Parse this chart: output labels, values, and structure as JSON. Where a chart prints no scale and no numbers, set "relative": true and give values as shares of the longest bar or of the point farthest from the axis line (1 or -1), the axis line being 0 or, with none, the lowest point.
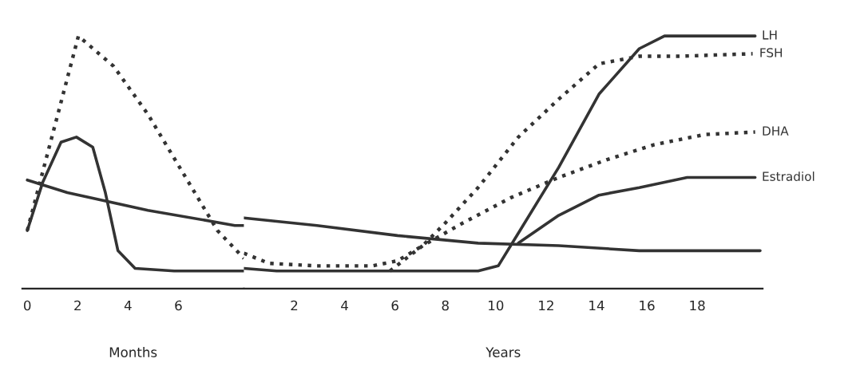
{
  "chart_data": [
    {
      "type": "line",
      "relative": true,
      "grid": false,
      "legend": false,
      "xlim": [
        -0.2,
        8.6
      ],
      "xticks": [
        0,
        2,
        4,
        6
      ],
      "annotations": [
        "Months"
      ],
      "series": [
        {
          "color": "#333333",
          "line_style": "solid",
          "x": [
            0,
            0.61,
            1.34,
            1.95,
            2.6,
            3.1,
            3.6,
            4.28,
            5.83,
            8.6
          ],
          "values": [
            0.23,
            0.42,
            0.58,
            0.6,
            0.56,
            0.38,
            0.15,
            0.08,
            0.07,
            0.07
          ]
        },
        {
          "color": "#333333",
          "line_style": "dotted",
          "x": [
            0,
            2.03,
            3.43,
            4.79,
            6.17,
            7.55,
            8.6
          ],
          "values": [
            0.23,
            1.0,
            0.88,
            0.69,
            0.46,
            0.23,
            0.12
          ]
        },
        {
          "color": "#333333",
          "line_style": "solid",
          "x": [
            0,
            1.59,
            4.79,
            8.24,
            8.6
          ],
          "values": [
            0.43,
            0.38,
            0.31,
            0.25,
            0.25
          ]
        }
      ]
    },
    {
      "type": "line",
      "relative": true,
      "grid": false,
      "legend": false,
      "xlim": [
        0,
        20.6
      ],
      "xticks": [
        2,
        4,
        6,
        8,
        10,
        12,
        14,
        16,
        18
      ],
      "annotations": [
        "Years"
      ],
      "series": [
        {
          "name": "LH",
          "color": "#333333",
          "line_style": "solid",
          "x": [
            0,
            1.3,
            6.1,
            9.3,
            10.1,
            10.9,
            12.5,
            14.1,
            15.7,
            16.7,
            18.3,
            20.3
          ],
          "values": [
            0.08,
            0.07,
            0.07,
            0.07,
            0.09,
            0.22,
            0.48,
            0.77,
            0.95,
            1.0,
            1.0,
            1.0
          ]
        },
        {
          "name": "FSH",
          "color": "#333333",
          "line_style": "dotted",
          "x": [
            0,
            1.0,
            2.9,
            5.1,
            6.1,
            7.1,
            8.0,
            9.3,
            10.9,
            12.5,
            14.1,
            15.7,
            17.3,
            20.2
          ],
          "values": [
            0.14,
            0.1,
            0.09,
            0.09,
            0.11,
            0.17,
            0.26,
            0.4,
            0.6,
            0.75,
            0.89,
            0.92,
            0.92,
            0.93
          ]
        },
        {
          "name": "DHA",
          "color": "#333333",
          "line_style": "dotted",
          "x": [
            5.8,
            7.1,
            8.7,
            10.6,
            12.5,
            14.4,
            16.3,
            18.3,
            20.3
          ],
          "values": [
            0.07,
            0.17,
            0.26,
            0.36,
            0.44,
            0.51,
            0.57,
            0.61,
            0.62
          ]
        },
        {
          "name": "Estradiol",
          "color": "#333333",
          "line_style": "solid",
          "x": [
            10.9,
            12.5,
            14.1,
            15.7,
            17.6,
            20.3
          ],
          "values": [
            0.18,
            0.29,
            0.37,
            0.4,
            0.44,
            0.44
          ]
        },
        {
          "color": "#333333",
          "line_style": "solid",
          "x": [
            0,
            2.9,
            6.1,
            9.3,
            12.5,
            15.7,
            20.5
          ],
          "values": [
            0.28,
            0.25,
            0.21,
            0.18,
            0.17,
            0.15,
            0.15
          ]
        }
      ]
    }
  ]
}
